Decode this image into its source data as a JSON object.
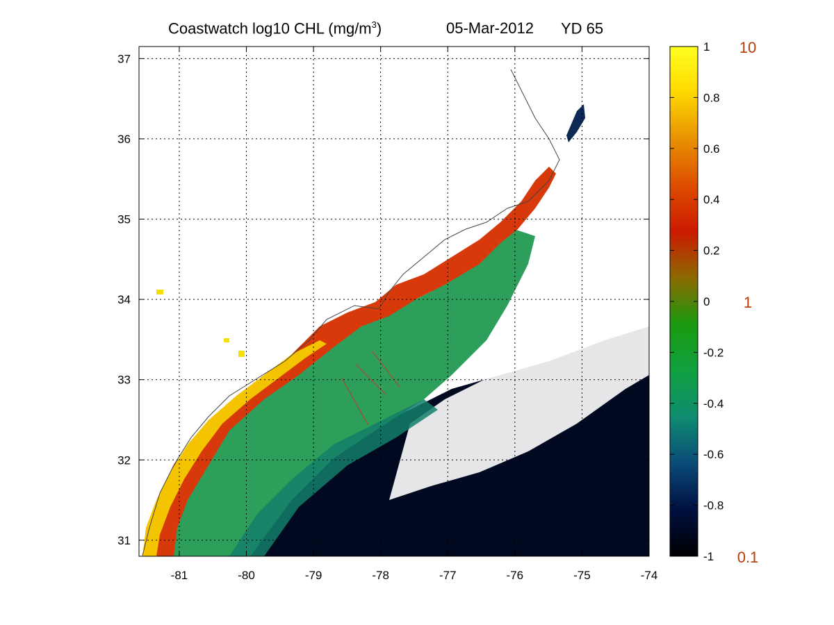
{
  "title": {
    "prefix": "Coastwatch  log10  CHL (mg/m",
    "exponent": "3",
    "suffix": ")",
    "date": "05-Mar-2012",
    "yearday": "YD 65"
  },
  "map": {
    "lon_range": [
      -81.6,
      -74.0
    ],
    "lat_range": [
      30.8,
      37.15
    ],
    "lon_ticks": [
      "-81",
      "-80",
      "-79",
      "-78",
      "-77",
      "-76",
      "-75",
      "-74"
    ],
    "lat_ticks": [
      "31",
      "32",
      "33",
      "34",
      "35",
      "36",
      "37"
    ],
    "grid": true
  },
  "colorbar": {
    "min": -1,
    "max": 1,
    "tick_labels": [
      "1",
      "0.8",
      "0.6",
      "0.4",
      "0.2",
      "0",
      "-0.2",
      "-0.4",
      "-0.6",
      "-0.8",
      "-1"
    ],
    "linear_labels": [
      "10",
      "1",
      "0.1"
    ],
    "stops": [
      "#000000",
      "#001040",
      "#0a4a78",
      "#0f8c70",
      "#10a040",
      "#1a9a10",
      "#8a6a00",
      "#cc1a00",
      "#dd4d00",
      "#e89000",
      "#ffd800",
      "#ffff20"
    ],
    "linear_label_color": "#b43c0a"
  }
}
